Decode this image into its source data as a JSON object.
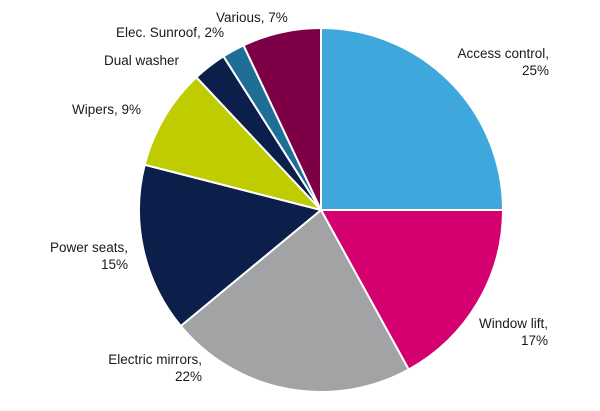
{
  "chart_data": {
    "type": "pie",
    "title": "",
    "slices": [
      {
        "label": "Access control",
        "value": 25,
        "display": [
          "Access control,",
          "25%"
        ],
        "color": "#3ea8dc"
      },
      {
        "label": "Window lift",
        "value": 17,
        "display": [
          "Window lift,",
          "17%"
        ],
        "color": "#d4006f"
      },
      {
        "label": "Electric mirrors",
        "value": 22,
        "display": [
          "Electric mirrors,",
          "22%"
        ],
        "color": "#a2a3a5"
      },
      {
        "label": "Power seats",
        "value": 15,
        "display": [
          "Power seats,",
          "15%"
        ],
        "color": "#0c1f4b"
      },
      {
        "label": "Wipers",
        "value": 9,
        "display": [
          "Wipers, 9%"
        ],
        "color": "#bfcc00"
      },
      {
        "label": "Dual washer",
        "value": 3,
        "display": [
          "Dual washer"
        ],
        "color": "#0c1f4b"
      },
      {
        "label": "Elec. Sunroof",
        "value": 2,
        "display": [
          "Elec. Sunroof, 2%"
        ],
        "color": "#1f6e96"
      },
      {
        "label": "Various",
        "value": 7,
        "display": [
          "Various, 7%"
        ],
        "color": "#7d0046"
      }
    ],
    "start": "12 o'clock",
    "direction": "clockwise",
    "legend": "none"
  }
}
